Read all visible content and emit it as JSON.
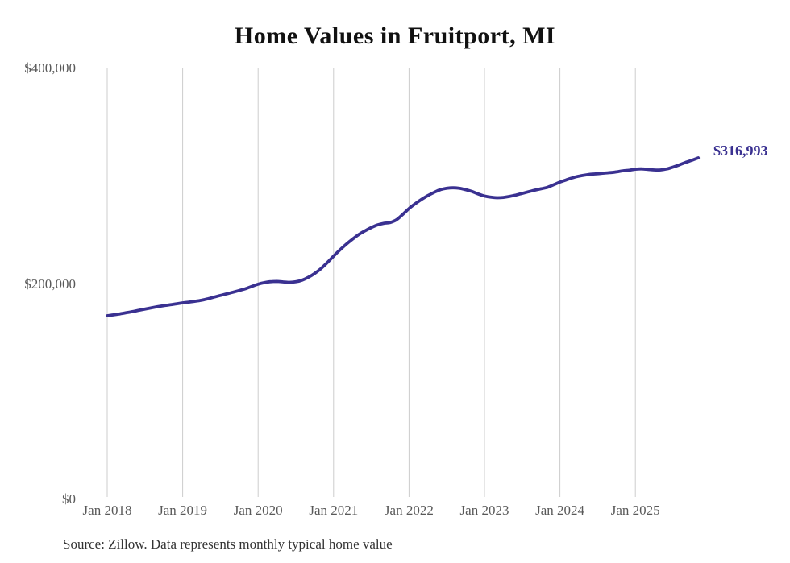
{
  "chart": {
    "colors": {
      "line": "#3a3191",
      "grid": "#cccccc",
      "axis_text": "#595959",
      "title_text": "#111111",
      "source_text": "#333333",
      "background": "#ffffff"
    }
  },
  "chart_data": {
    "type": "line",
    "title": "Home Values in Fruitport, MI",
    "source_note": "Source: Zillow. Data represents monthly typical home value",
    "latest_label": "$316,993",
    "latest_value": 316993,
    "x_start": "Jan 2018",
    "x_end": "Nov 2025",
    "frequency": "monthly",
    "x_ticks": [
      "Jan 2018",
      "Jan 2019",
      "Jan 2020",
      "Jan 2021",
      "Jan 2022",
      "Jan 2023",
      "Jan 2024",
      "Jan 2025"
    ],
    "y_ticks": [
      {
        "label": "$0",
        "value": 0
      },
      {
        "label": "$200,000",
        "value": 200000
      },
      {
        "label": "$400,000",
        "value": 400000
      }
    ],
    "ylim": [
      0,
      400000
    ],
    "grid": "vertical-only",
    "legend": "none",
    "series": [
      {
        "name": "Typical home value",
        "values": [
          170500,
          171300,
          172200,
          173200,
          174300,
          175500,
          176700,
          177800,
          178900,
          179800,
          180600,
          181500,
          182400,
          183100,
          183900,
          184900,
          186200,
          187800,
          189300,
          190800,
          192300,
          193900,
          195600,
          197700,
          199800,
          201200,
          202100,
          202300,
          201900,
          201500,
          202000,
          203500,
          206200,
          209800,
          214300,
          219800,
          225800,
          231500,
          236800,
          241500,
          245800,
          249300,
          252300,
          254800,
          256300,
          257000,
          259500,
          264500,
          270000,
          274500,
          278500,
          282000,
          285000,
          287500,
          288800,
          289200,
          288800,
          287500,
          285800,
          283500,
          281600,
          280500,
          280000,
          280300,
          281200,
          282500,
          284000,
          285500,
          287000,
          288300,
          289600,
          292000,
          294500,
          296500,
          298500,
          300000,
          301000,
          301800,
          302300,
          302800,
          303300,
          304000,
          305000,
          305500,
          306500,
          306800,
          306300,
          305800,
          305800,
          306800,
          308500,
          310500,
          312800,
          314800,
          316993
        ]
      }
    ]
  }
}
